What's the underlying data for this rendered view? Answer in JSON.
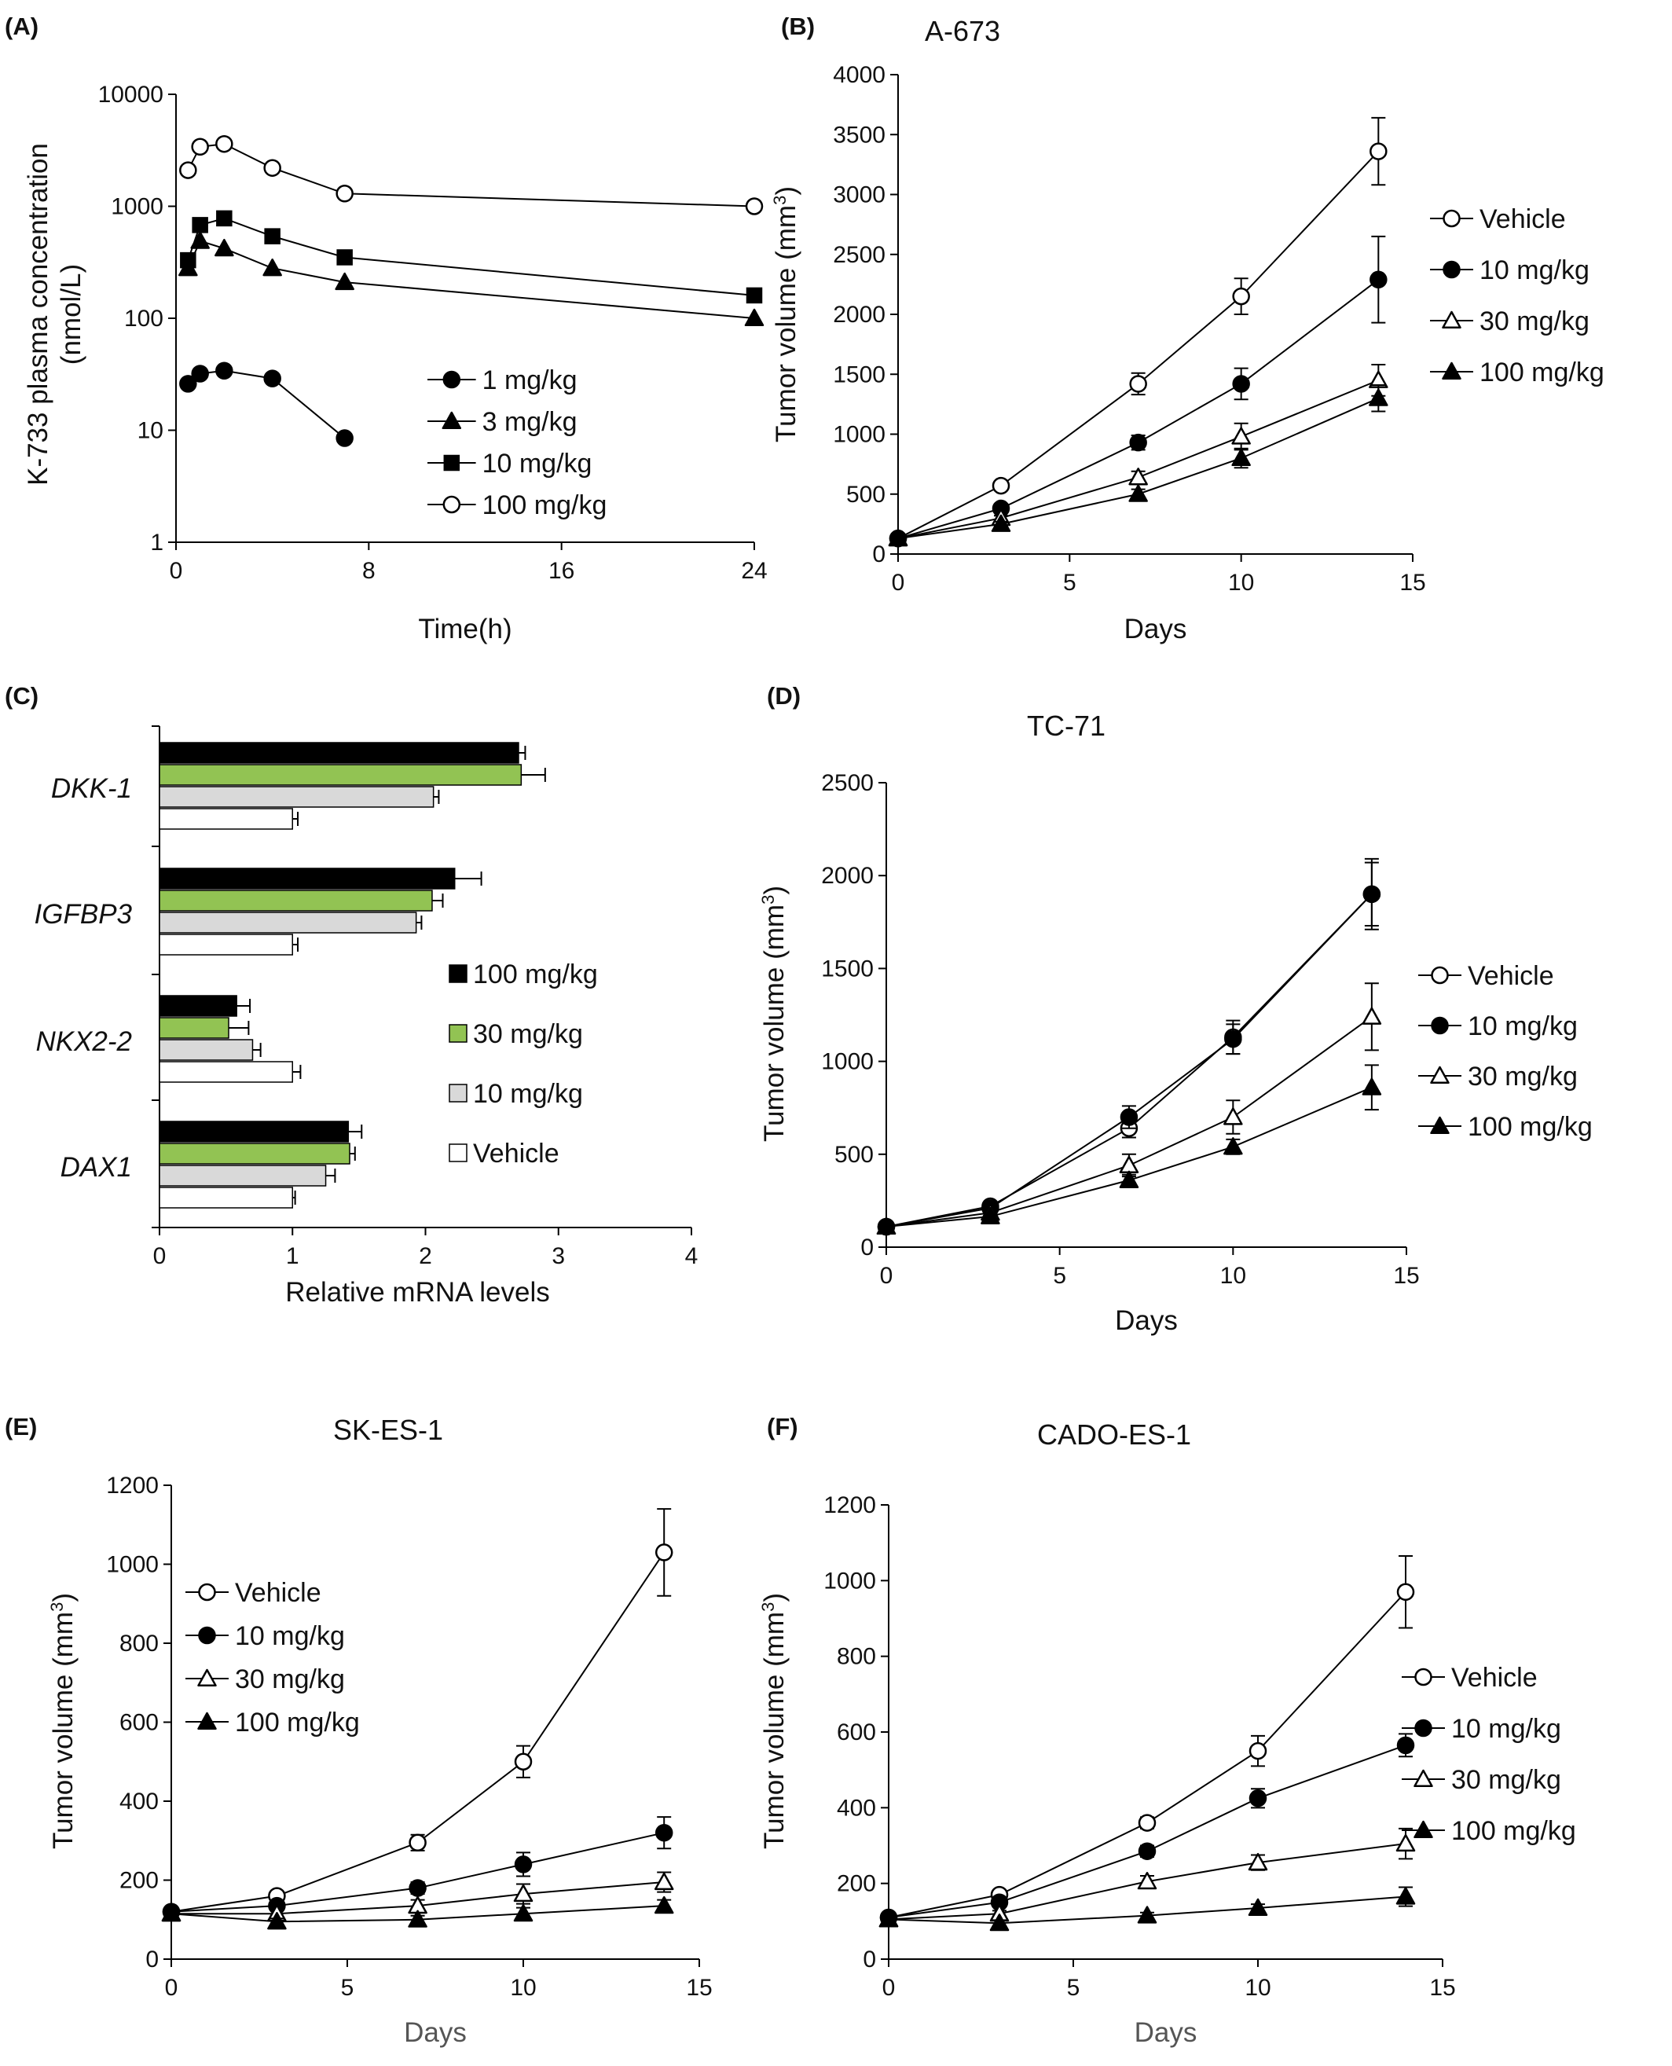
{
  "figure": {
    "panels": [
      {
        "id": "A",
        "letter": "(A)"
      },
      {
        "id": "B",
        "letter": "(B)"
      },
      {
        "id": "C",
        "letter": "(C)"
      },
      {
        "id": "D",
        "letter": "(D)"
      },
      {
        "id": "E",
        "letter": "(E)"
      },
      {
        "id": "F",
        "letter": "(F)"
      }
    ]
  },
  "chart_data": [
    {
      "id": "A",
      "type": "line",
      "title": "",
      "xlabel": "Time(h)",
      "ylabel": "K-733 plasma concentration (nmol/L)",
      "ylabel_lines": [
        "K-733 plasma concentration",
        "(nmol/L)"
      ],
      "yscale": "log",
      "xlim": [
        0,
        24
      ],
      "ylim": [
        1,
        10000
      ],
      "xticks": [
        0,
        8,
        16,
        24
      ],
      "yticks": [
        1,
        10,
        100,
        1000,
        10000
      ],
      "legend_position": "bottom-right",
      "series": [
        {
          "name": "1 mg/kg",
          "marker": "filled-circle",
          "x": [
            0.5,
            1,
            2,
            4,
            7
          ],
          "y": [
            26,
            32,
            34,
            29,
            8.5
          ]
        },
        {
          "name": "3 mg/kg",
          "marker": "filled-triangle",
          "x": [
            0.5,
            1,
            2,
            4,
            7,
            24
          ],
          "y": [
            280,
            490,
            420,
            280,
            210,
            100
          ]
        },
        {
          "name": "10 mg/kg",
          "marker": "filled-square",
          "x": [
            0.5,
            1,
            2,
            4,
            7,
            24
          ],
          "y": [
            330,
            680,
            780,
            540,
            350,
            160
          ]
        },
        {
          "name": "100 mg/kg",
          "marker": "open-circle",
          "x": [
            0.5,
            1,
            2,
            4,
            7,
            24
          ],
          "y": [
            2100,
            3400,
            3600,
            2200,
            1300,
            1000
          ]
        }
      ]
    },
    {
      "id": "B",
      "type": "line",
      "title": "A-673",
      "xlabel": "Days",
      "ylabel": "Tumor volume (mm",
      "ylabel_sup": "3",
      "ylabel_tail": ")",
      "xlim": [
        0,
        15
      ],
      "ylim": [
        0,
        4000
      ],
      "xticks": [
        0,
        5,
        10,
        15
      ],
      "yticks": [
        0,
        500,
        1000,
        1500,
        2000,
        2500,
        3000,
        3500,
        4000
      ],
      "legend_position": "right",
      "series": [
        {
          "name": "Vehicle",
          "marker": "open-circle",
          "x": [
            0,
            3,
            7,
            10,
            14
          ],
          "y": [
            130,
            570,
            1420,
            2150,
            3360
          ],
          "err": [
            15,
            30,
            90,
            150,
            280
          ]
        },
        {
          "name": "10 mg/kg",
          "marker": "filled-circle",
          "x": [
            0,
            3,
            7,
            10,
            14
          ],
          "y": [
            130,
            380,
            930,
            1420,
            2290
          ],
          "err": [
            15,
            25,
            60,
            130,
            360
          ]
        },
        {
          "name": "30 mg/kg",
          "marker": "open-triangle",
          "x": [
            0,
            3,
            7,
            10,
            14
          ],
          "y": [
            130,
            300,
            640,
            980,
            1450
          ],
          "err": [
            15,
            20,
            50,
            110,
            130
          ]
        },
        {
          "name": "100 mg/kg",
          "marker": "filled-triangle",
          "x": [
            0,
            3,
            7,
            10,
            14
          ],
          "y": [
            130,
            250,
            500,
            800,
            1300
          ],
          "err": [
            15,
            20,
            40,
            80,
            110
          ]
        }
      ]
    },
    {
      "id": "C",
      "type": "bar",
      "orientation": "horizontal",
      "title": "",
      "xlabel": "Relative  mRNA levels",
      "categories": [
        "DKK-1",
        "IGFBP3",
        "NKX2-2",
        "DAX1"
      ],
      "xlim": [
        0,
        4
      ],
      "xticks": [
        0,
        1,
        2,
        3,
        4
      ],
      "legend_position": "right",
      "series": [
        {
          "name": "100 mg/kg",
          "color": "#000000",
          "values": [
            2.7,
            2.22,
            0.58,
            1.42
          ],
          "err": [
            0.05,
            0.2,
            0.1,
            0.1
          ]
        },
        {
          "name": "30 mg/kg",
          "color": "#92c353",
          "values": [
            2.72,
            2.05,
            0.52,
            1.43
          ],
          "err": [
            0.18,
            0.08,
            0.15,
            0.04
          ]
        },
        {
          "name": "10 mg/kg",
          "color": "#d9d9d9",
          "values": [
            2.06,
            1.93,
            0.7,
            1.25
          ],
          "err": [
            0.04,
            0.04,
            0.06,
            0.07
          ]
        },
        {
          "name": "Vehicle",
          "color": "#ffffff",
          "values": [
            1.0,
            1.0,
            1.0,
            1.0
          ],
          "err": [
            0.04,
            0.04,
            0.06,
            0.02
          ]
        }
      ]
    },
    {
      "id": "D",
      "type": "line",
      "title": "TC-71",
      "xlabel": "Days",
      "ylabel": "Tumor volume (mm",
      "ylabel_sup": "3",
      "ylabel_tail": ")",
      "xlim": [
        0,
        15
      ],
      "ylim": [
        0,
        2500
      ],
      "xticks": [
        0,
        5,
        10,
        15
      ],
      "yticks": [
        0,
        500,
        1000,
        1500,
        2000,
        2500
      ],
      "legend_position": "right",
      "series": [
        {
          "name": "Vehicle",
          "marker": "open-circle",
          "x": [
            0,
            3,
            7,
            10,
            14
          ],
          "y": [
            110,
            220,
            640,
            1130,
            1900
          ],
          "err": [
            10,
            15,
            50,
            90,
            170
          ]
        },
        {
          "name": "10 mg/kg",
          "marker": "filled-circle",
          "x": [
            0,
            3,
            7,
            10,
            14
          ],
          "y": [
            110,
            210,
            700,
            1120,
            1900
          ],
          "err": [
            10,
            15,
            60,
            80,
            190
          ]
        },
        {
          "name": "30 mg/kg",
          "marker": "open-triangle",
          "x": [
            0,
            3,
            7,
            10,
            14
          ],
          "y": [
            110,
            185,
            440,
            700,
            1240
          ],
          "err": [
            10,
            15,
            60,
            90,
            180
          ]
        },
        {
          "name": "100 mg/kg",
          "marker": "filled-triangle",
          "x": [
            0,
            3,
            7,
            10,
            14
          ],
          "y": [
            110,
            165,
            360,
            540,
            860
          ],
          "err": [
            10,
            15,
            30,
            40,
            120
          ]
        }
      ]
    },
    {
      "id": "E",
      "type": "line",
      "title": "SK-ES-1",
      "xlabel": "Days",
      "ylabel": "Tumor volume (mm",
      "ylabel_sup": "3",
      "ylabel_tail": ")",
      "xlim": [
        0,
        15
      ],
      "ylim": [
        0,
        1200
      ],
      "xticks": [
        0,
        5,
        10,
        15
      ],
      "yticks": [
        0,
        200,
        400,
        600,
        800,
        1000,
        1200
      ],
      "legend_position": "top-left",
      "series": [
        {
          "name": "Vehicle",
          "marker": "open-circle",
          "x": [
            0,
            3,
            7,
            10,
            14
          ],
          "y": [
            120,
            160,
            295,
            500,
            1030
          ],
          "err": [
            8,
            10,
            20,
            40,
            110
          ]
        },
        {
          "name": "10 mg/kg",
          "marker": "filled-circle",
          "x": [
            0,
            3,
            7,
            10,
            14
          ],
          "y": [
            120,
            135,
            180,
            240,
            320
          ],
          "err": [
            8,
            10,
            15,
            30,
            40
          ]
        },
        {
          "name": "30 mg/kg",
          "marker": "open-triangle",
          "x": [
            0,
            3,
            7,
            10,
            14
          ],
          "y": [
            115,
            115,
            135,
            165,
            195
          ],
          "err": [
            8,
            10,
            15,
            25,
            25
          ]
        },
        {
          "name": "100 mg/kg",
          "marker": "filled-triangle",
          "x": [
            0,
            3,
            7,
            10,
            14
          ],
          "y": [
            115,
            95,
            100,
            115,
            135
          ],
          "err": [
            8,
            8,
            10,
            15,
            15
          ]
        }
      ]
    },
    {
      "id": "F",
      "type": "line",
      "title": "CADO-ES-1",
      "xlabel": "Days",
      "ylabel": "Tumor volume (mm",
      "ylabel_sup": "3",
      "ylabel_tail": ")",
      "xlim": [
        0,
        15
      ],
      "ylim": [
        0,
        1200
      ],
      "xticks": [
        0,
        5,
        10,
        15
      ],
      "yticks": [
        0,
        200,
        400,
        600,
        800,
        1000,
        1200
      ],
      "legend_position": "right",
      "series": [
        {
          "name": "Vehicle",
          "marker": "open-circle",
          "x": [
            0,
            3,
            7,
            10,
            14
          ],
          "y": [
            110,
            170,
            360,
            550,
            970
          ],
          "err": [
            8,
            10,
            15,
            40,
            95
          ]
        },
        {
          "name": "10 mg/kg",
          "marker": "filled-circle",
          "x": [
            0,
            3,
            7,
            10,
            14
          ],
          "y": [
            110,
            150,
            285,
            425,
            565
          ],
          "err": [
            8,
            10,
            15,
            25,
            30
          ]
        },
        {
          "name": "30 mg/kg",
          "marker": "open-triangle",
          "x": [
            0,
            3,
            7,
            10,
            14
          ],
          "y": [
            105,
            120,
            205,
            255,
            305
          ],
          "err": [
            8,
            8,
            15,
            20,
            40
          ]
        },
        {
          "name": "100 mg/kg",
          "marker": "filled-triangle",
          "x": [
            0,
            3,
            7,
            10,
            14
          ],
          "y": [
            105,
            95,
            115,
            135,
            165
          ],
          "err": [
            8,
            8,
            8,
            10,
            25
          ]
        }
      ]
    }
  ]
}
